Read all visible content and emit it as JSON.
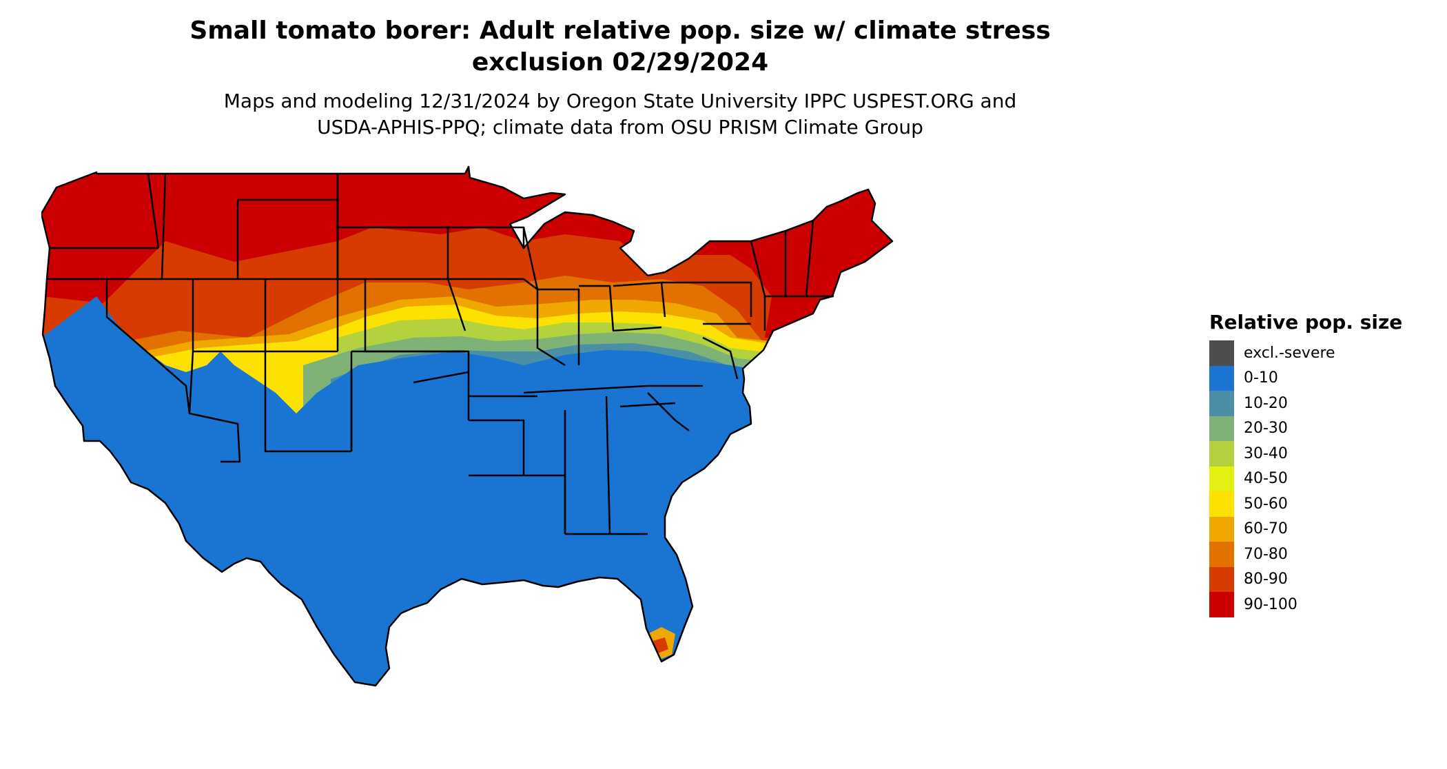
{
  "title_line1": "Small tomato borer: Adult relative pop. size w/ climate stress",
  "title_line2": "exclusion 02/29/2024",
  "subtitle_line1": "Maps and modeling 12/31/2024 by Oregon State University IPPC USPEST.ORG and",
  "subtitle_line2": "USDA-APHIS-PPQ; climate data from OSU PRISM Climate Group",
  "legend": {
    "title": "Relative pop. size",
    "items": [
      {
        "label": "excl.-severe",
        "color": "#4d4d4d"
      },
      {
        "label": "0-10",
        "color": "#1a74d2"
      },
      {
        "label": "10-20",
        "color": "#4a8fa5"
      },
      {
        "label": "20-30",
        "color": "#7fb276"
      },
      {
        "label": "30-40",
        "color": "#b4d13e"
      },
      {
        "label": "40-50",
        "color": "#e4ef12"
      },
      {
        "label": "50-60",
        "color": "#fde100"
      },
      {
        "label": "60-70",
        "color": "#f0a800"
      },
      {
        "label": "70-80",
        "color": "#e27100"
      },
      {
        "label": "80-90",
        "color": "#d83b00"
      },
      {
        "label": "90-100",
        "color": "#cc0000"
      }
    ]
  }
}
